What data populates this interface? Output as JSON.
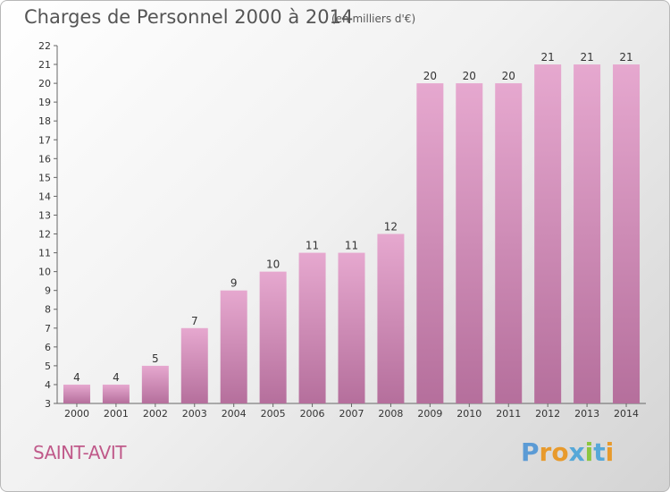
{
  "chart_data": {
    "type": "bar",
    "title": "Charges de Personnel 2000 à 2014",
    "subtitle": "(en milliers d'€)",
    "categories": [
      "2000",
      "2001",
      "2002",
      "2003",
      "2004",
      "2005",
      "2006",
      "2007",
      "2008",
      "2009",
      "2010",
      "2011",
      "2012",
      "2013",
      "2014"
    ],
    "values": [
      4,
      4,
      5,
      7,
      9,
      10,
      11,
      11,
      12,
      20,
      20,
      20,
      21,
      21,
      21
    ],
    "ylim": [
      3,
      22
    ],
    "yticks": [
      3,
      4,
      5,
      6,
      7,
      8,
      9,
      10,
      11,
      12,
      13,
      14,
      15,
      16,
      17,
      18,
      19,
      20,
      21,
      22
    ],
    "grid": false,
    "bar_color": "#d68fb8"
  },
  "commune": "SAINT-AVIT",
  "logo": {
    "text": "Proxiti",
    "colors": [
      "#5b9bd5",
      "#e89a2c",
      "#e89a2c",
      "#56a8d8",
      "#8cc63f",
      "#56a8d8",
      "#e89a2c"
    ]
  }
}
